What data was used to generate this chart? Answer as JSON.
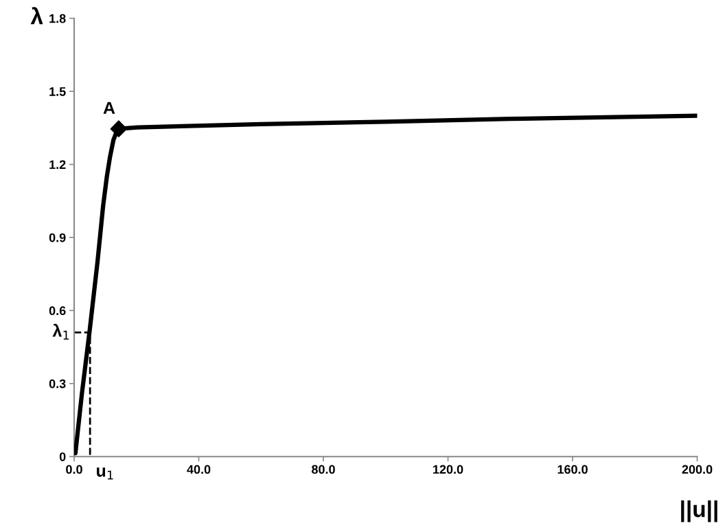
{
  "chart_data": {
    "type": "line",
    "xlabel": "||u||",
    "ylabel": "λ",
    "xlim": [
      0,
      200
    ],
    "ylim": [
      0,
      1.8
    ],
    "xticks": [
      {
        "value": 0,
        "label": "0.0"
      },
      {
        "value": 40,
        "label": "40.0"
      },
      {
        "value": 80,
        "label": "80.0"
      },
      {
        "value": 120,
        "label": "120.0"
      },
      {
        "value": 160,
        "label": "160.0"
      },
      {
        "value": 200,
        "label": "200.0"
      }
    ],
    "yticks": [
      0,
      0.3,
      0.6,
      0.9,
      1.2,
      1.5,
      1.8
    ],
    "grid": false,
    "series": [
      {
        "color": "#000000",
        "line_style": "solid",
        "marker": "none",
        "x": [
          0.4,
          2.5,
          5.0,
          7.5,
          9.3,
          10.5,
          11.5,
          12.6,
          13.5,
          14.3,
          20.3,
          60,
          100,
          140,
          200
        ],
        "values": [
          0.014,
          0.26,
          0.52,
          0.8,
          1.03,
          1.15,
          1.23,
          1.3,
          1.33,
          1.346,
          1.352,
          1.365,
          1.375,
          1.387,
          1.4
        ]
      },
      {
        "color": "#000000",
        "line_style": "dashed",
        "marker": "none",
        "x": [
          0,
          5.1,
          5.1
        ],
        "values": [
          0.51,
          0.51,
          0
        ]
      },
      {
        "type": "scatter",
        "color": "#000000",
        "marker": "diamond",
        "x": [
          14.3
        ],
        "values": [
          1.346
        ]
      }
    ],
    "annotations": [
      {
        "text": "A",
        "x": 14.3,
        "y": 1.346
      },
      {
        "text": "λ$_{1}$",
        "x": 0,
        "y": 0.51
      },
      {
        "text": "u$_{1}$",
        "x": 5.1,
        "y": 0
      }
    ]
  }
}
